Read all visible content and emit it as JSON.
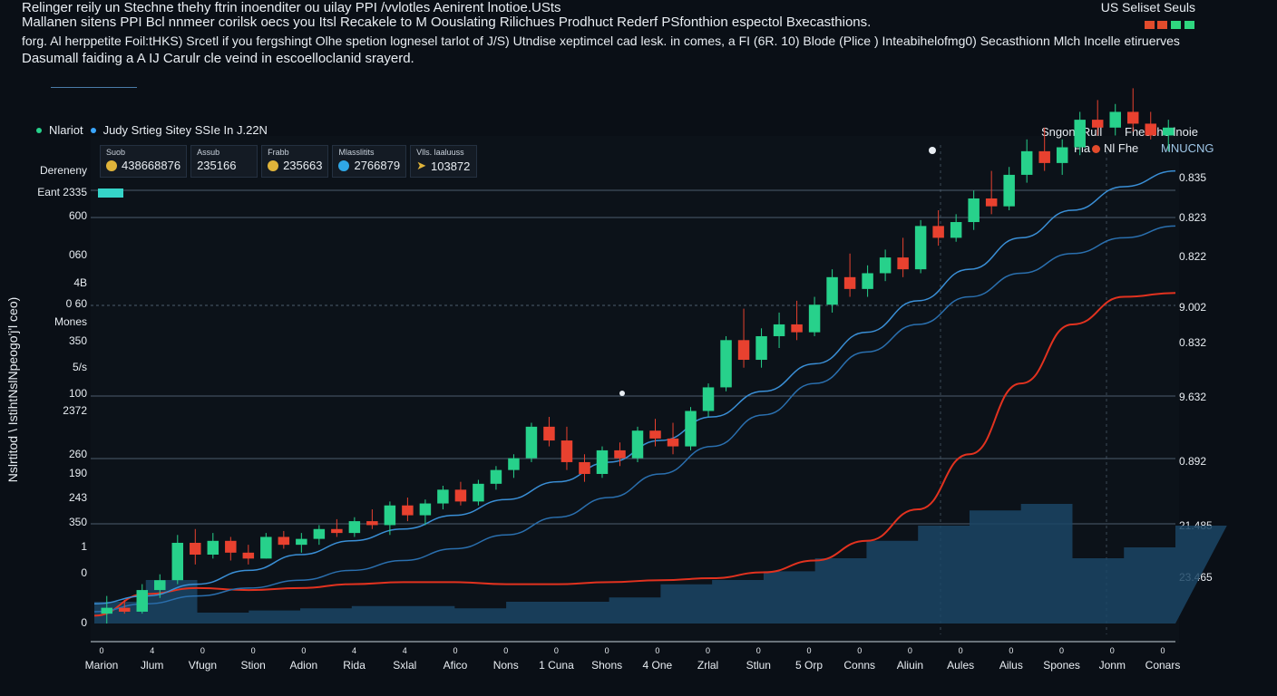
{
  "header": {
    "line1": "Relinger reily un Stechne thehy ftrin inoenditer ou uilay PPI /vvlotles Aenirent lnotioe.USts",
    "line2": "Mallanen sitens PPI Bcl nnmeer corilsk oecs you Itsl Recakele to M Oouslating Rilichues Prodhuct Rederf PSfonthion espectol Bxecasthions.",
    "line3": "forg. Al herppetite Foil:tHKS) Srcetl if you fergshingt Olhe spetion lognesel tarlot of J/S) Utndise xeptimcel cad lesk. in comes, a FI (6R. 10) Blode (Plice ) Inteabihelofmg0) Secasthionn Mlch Incelle etiruerves",
    "line4": "Dasumall faiding a A IJ Carulr cle veind in escoelloclanid srayerd.",
    "top_right_title": "US Seliset Seuls",
    "squares": [
      "#e24b2c",
      "#e24b2c",
      "#2fd67f",
      "#2fd67f"
    ]
  },
  "legend_top": {
    "market": "Nlariot",
    "series": "Judy Srtieg Sitey SSIe In J.22N",
    "market_color": "#27d18b",
    "series_color": "#3aa7ff"
  },
  "stats": [
    {
      "label": "Suob",
      "value": "438668876",
      "icon": "coin-icon"
    },
    {
      "label": "Assub",
      "value": "235166",
      "icon": ""
    },
    {
      "label": "Frabb",
      "value": "235663",
      "icon": "coin-icon"
    },
    {
      "label": "Mlasslitits",
      "value": "2766879",
      "icon": "coin-blue-icon"
    },
    {
      "label": "Vlls. laaluuss",
      "value": "103872",
      "icon": "arrow-icon"
    }
  ],
  "right_legend": {
    "line1": "Sngont Rull",
    "line2": "Fla",
    "line3": "Nl Fhe",
    "line4": "Fhesche lnoie",
    "line5": "MNUCNG"
  },
  "y_labels_left": [
    "Dereneny",
    "Eant 2335",
    "600",
    "060",
    "4B",
    "0 60",
    "Mones",
    "350",
    "5/s",
    "100",
    "2372",
    "260",
    "190",
    "243",
    "350",
    "1",
    "0",
    "0"
  ],
  "y_labels_right": [
    "0.835",
    "0.823",
    "0.822",
    "9.002",
    "0.832",
    "9.632",
    "0.892",
    "21.485",
    "23.465"
  ],
  "x_labels": [
    "Marion",
    "Jlum",
    "Vfugn",
    "Stion",
    "Adion",
    "Rida",
    "Sxlal",
    "Afico",
    "Nons",
    "1 Cuna",
    "Shons",
    "4 One",
    "Zrlal",
    "Stlun",
    "5 Orp",
    "Conns",
    "Aliuin",
    "Aules",
    "Ailus",
    "Spones",
    "Jonm",
    "Conars"
  ],
  "x_ticks": [
    "0",
    "4",
    "0",
    "0",
    "0",
    "4",
    "4",
    "0",
    "0",
    "0",
    "0",
    "0",
    "0",
    "0",
    "0",
    "0",
    "0",
    "0",
    "0",
    "0",
    "0",
    "0"
  ],
  "y_axis_title": "Nslrtitod \\ IstihtNslNpeogo'j'l ceo)",
  "colors": {
    "up": "#27d18b",
    "down": "#e8412f",
    "ma_fast": "#3a8fd6",
    "ma_slow": "#2a6fae",
    "red_line": "#e2321f",
    "volume": "#1b4565",
    "grid": "#5d6f82"
  },
  "chart_data": {
    "type": "candlestick",
    "title": "",
    "candles": [
      [
        0,
        0.05,
        0.14,
        0.0,
        0.08
      ],
      [
        1,
        0.08,
        0.12,
        0.05,
        0.06
      ],
      [
        2,
        0.06,
        0.2,
        0.05,
        0.17
      ],
      [
        3,
        0.17,
        0.25,
        0.13,
        0.22
      ],
      [
        4,
        0.22,
        0.45,
        0.2,
        0.41
      ],
      [
        5,
        0.41,
        0.48,
        0.3,
        0.35
      ],
      [
        6,
        0.35,
        0.46,
        0.33,
        0.42
      ],
      [
        7,
        0.42,
        0.44,
        0.32,
        0.36
      ],
      [
        8,
        0.36,
        0.4,
        0.3,
        0.33
      ],
      [
        9,
        0.33,
        0.46,
        0.33,
        0.44
      ],
      [
        10,
        0.44,
        0.47,
        0.38,
        0.4
      ],
      [
        11,
        0.4,
        0.46,
        0.36,
        0.43
      ],
      [
        12,
        0.43,
        0.5,
        0.4,
        0.48
      ],
      [
        13,
        0.48,
        0.53,
        0.44,
        0.46
      ],
      [
        14,
        0.46,
        0.54,
        0.44,
        0.52
      ],
      [
        15,
        0.52,
        0.58,
        0.48,
        0.5
      ],
      [
        16,
        0.5,
        0.62,
        0.45,
        0.6
      ],
      [
        17,
        0.6,
        0.64,
        0.52,
        0.55
      ],
      [
        18,
        0.55,
        0.63,
        0.5,
        0.61
      ],
      [
        19,
        0.61,
        0.7,
        0.58,
        0.68
      ],
      [
        20,
        0.68,
        0.72,
        0.6,
        0.62
      ],
      [
        21,
        0.62,
        0.73,
        0.6,
        0.71
      ],
      [
        22,
        0.71,
        0.8,
        0.68,
        0.78
      ],
      [
        23,
        0.78,
        0.86,
        0.74,
        0.84
      ],
      [
        24,
        0.84,
        1.02,
        0.82,
        1.0
      ],
      [
        25,
        1.0,
        1.05,
        0.9,
        0.93
      ],
      [
        26,
        0.93,
        1.0,
        0.78,
        0.82
      ],
      [
        27,
        0.82,
        0.86,
        0.72,
        0.76
      ],
      [
        28,
        0.76,
        0.9,
        0.74,
        0.88
      ],
      [
        29,
        0.88,
        0.92,
        0.8,
        0.84
      ],
      [
        30,
        0.84,
        1.0,
        0.82,
        0.98
      ],
      [
        31,
        0.98,
        1.04,
        0.9,
        0.94
      ],
      [
        32,
        0.94,
        1.02,
        0.86,
        0.9
      ],
      [
        33,
        0.9,
        1.1,
        0.88,
        1.08
      ],
      [
        34,
        1.08,
        1.22,
        1.05,
        1.2
      ],
      [
        35,
        1.2,
        1.46,
        1.18,
        1.44
      ],
      [
        36,
        1.44,
        1.6,
        1.3,
        1.34
      ],
      [
        37,
        1.34,
        1.5,
        1.3,
        1.46
      ],
      [
        38,
        1.46,
        1.58,
        1.4,
        1.52
      ],
      [
        39,
        1.52,
        1.64,
        1.44,
        1.48
      ],
      [
        40,
        1.48,
        1.66,
        1.46,
        1.62
      ],
      [
        41,
        1.62,
        1.8,
        1.58,
        1.76
      ],
      [
        42,
        1.76,
        1.88,
        1.66,
        1.7
      ],
      [
        43,
        1.7,
        1.82,
        1.66,
        1.78
      ],
      [
        44,
        1.78,
        1.9,
        1.74,
        1.86
      ],
      [
        45,
        1.86,
        1.96,
        1.76,
        1.8
      ],
      [
        46,
        1.8,
        2.05,
        1.78,
        2.02
      ],
      [
        47,
        2.02,
        2.1,
        1.92,
        1.96
      ],
      [
        48,
        1.96,
        2.08,
        1.94,
        2.04
      ],
      [
        49,
        2.04,
        2.2,
        2.0,
        2.16
      ],
      [
        50,
        2.16,
        2.3,
        2.08,
        2.12
      ],
      [
        51,
        2.12,
        2.32,
        2.1,
        2.28
      ],
      [
        52,
        2.28,
        2.46,
        2.24,
        2.4
      ],
      [
        53,
        2.4,
        2.52,
        2.3,
        2.34
      ],
      [
        54,
        2.34,
        2.46,
        2.28,
        2.42
      ],
      [
        55,
        2.42,
        2.6,
        2.38,
        2.56
      ],
      [
        56,
        2.56,
        2.66,
        2.48,
        2.52
      ],
      [
        57,
        2.52,
        2.64,
        2.48,
        2.6
      ],
      [
        58,
        2.6,
        2.72,
        2.5,
        2.54
      ],
      [
        59,
        2.54,
        2.6,
        2.46,
        2.48
      ],
      [
        60,
        2.48,
        2.56,
        2.4,
        2.52
      ]
    ],
    "moving_average_fast": [
      0.1,
      0.14,
      0.2,
      0.27,
      0.35,
      0.42,
      0.48,
      0.55,
      0.63,
      0.72,
      0.82,
      0.93,
      1.05,
      1.18,
      1.32,
      1.48,
      1.64,
      1.8,
      1.96,
      2.1,
      2.22,
      2.3
    ],
    "moving_average_slow": [
      0.06,
      0.1,
      0.14,
      0.18,
      0.22,
      0.27,
      0.32,
      0.38,
      0.45,
      0.54,
      0.64,
      0.76,
      0.9,
      1.06,
      1.22,
      1.38,
      1.52,
      1.66,
      1.78,
      1.88,
      1.96,
      2.02
    ],
    "red_line": [
      0.04,
      0.15,
      0.18,
      0.17,
      0.18,
      0.2,
      0.21,
      0.21,
      0.2,
      0.2,
      0.21,
      0.22,
      0.23,
      0.26,
      0.32,
      0.42,
      0.58,
      0.86,
      1.22,
      1.52,
      1.66,
      1.68
    ],
    "volume": [
      0.1,
      0.2,
      0.05,
      0.06,
      0.07,
      0.08,
      0.08,
      0.07,
      0.1,
      0.1,
      0.12,
      0.18,
      0.2,
      0.24,
      0.3,
      0.38,
      0.45,
      0.52,
      0.55,
      0.3,
      0.35,
      0.45
    ],
    "ylim": [
      0,
      2.8
    ],
    "grid": true,
    "legend_placement": "top-left"
  }
}
